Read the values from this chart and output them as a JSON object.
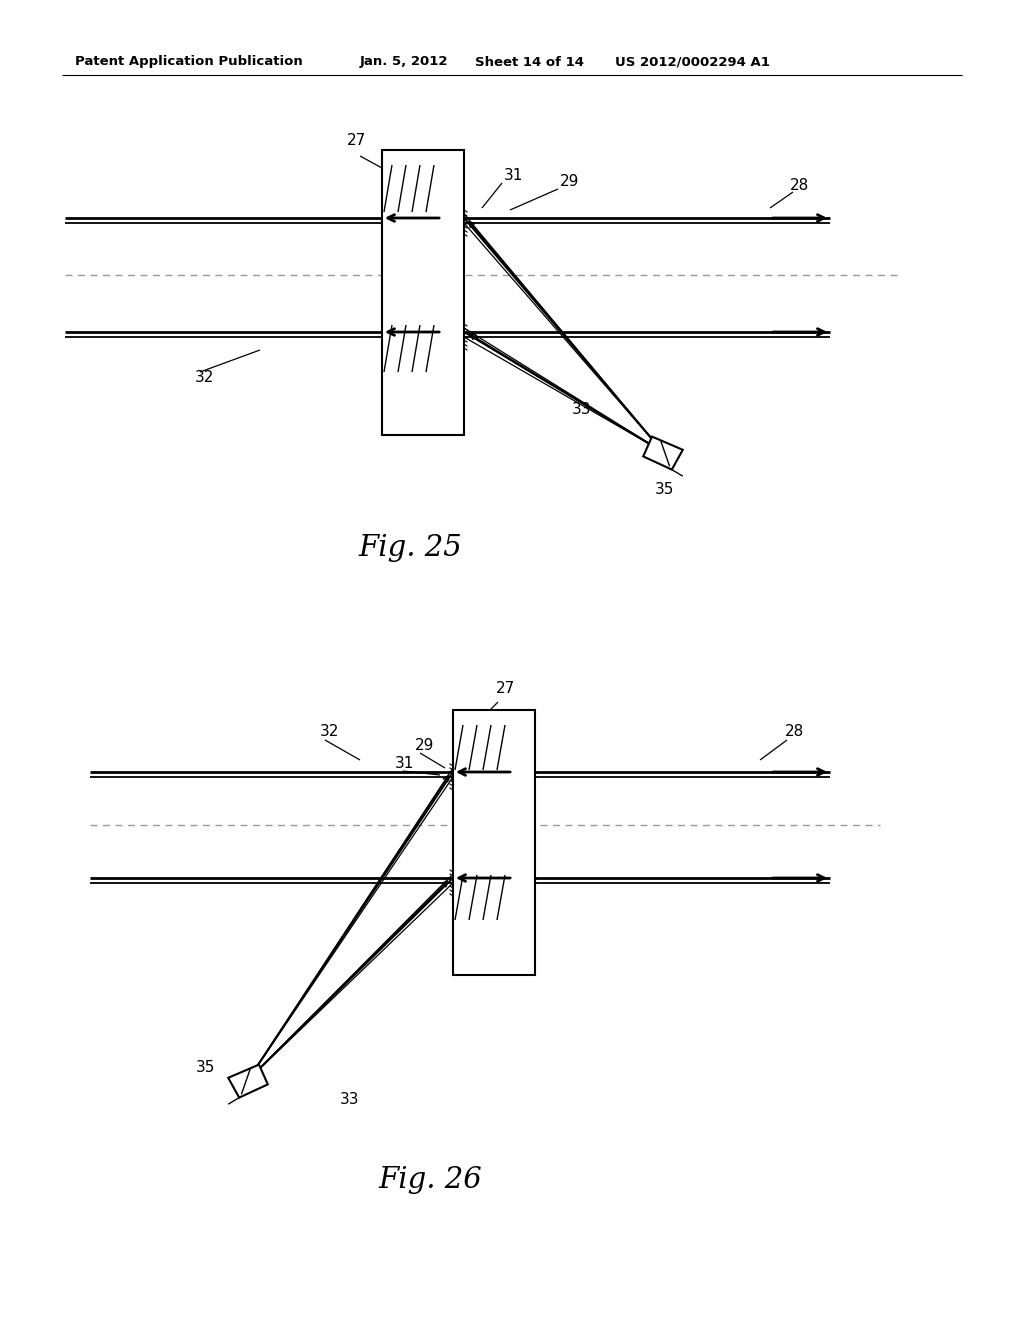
{
  "background_color": "#ffffff",
  "header_text": "Patent Application Publication",
  "header_date": "Jan. 5, 2012",
  "header_sheet": "Sheet 14 of 14",
  "header_patent": "US 2012/0002294 A1",
  "fig25_label": "Fig. 25",
  "fig26_label": "Fig. 26",
  "line_color": "#000000",
  "dashed_color": "#aaaaaa"
}
